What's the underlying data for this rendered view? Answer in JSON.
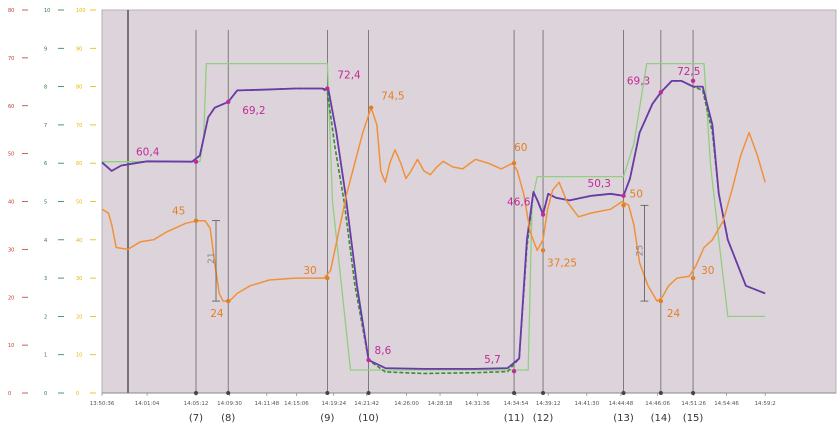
{
  "chart_data": {
    "type": "line",
    "x_unit": "seconds",
    "x_range": [
      0,
      1140
    ],
    "y_range": [
      0,
      100
    ],
    "colors": {
      "plot_bg": "#ddd4db",
      "green": "#3a8a3a",
      "setpoint": "#8fcf7f",
      "purple": "#6a3aa8",
      "orange": "#f0913a",
      "magenta_label": "#c02a9a",
      "orange_label": "#e27f23",
      "guide_line": "#555555"
    },
    "left_axes": [
      {
        "color": "#c0392b",
        "ticks": [
          "0",
          "10",
          "20",
          "30",
          "40",
          "50",
          "60",
          "70",
          "80"
        ]
      },
      {
        "color": "#2e7d32",
        "ticks": [
          "0",
          "1",
          "2",
          "3",
          "4",
          "5",
          "6",
          "7",
          "8",
          "9",
          "10"
        ]
      },
      {
        "color": "#e6b800",
        "ticks": [
          "0",
          "10",
          "20",
          "30",
          "40",
          "50",
          "60",
          "70",
          "80",
          "90",
          "100"
        ]
      }
    ],
    "x_ticks": [
      {
        "x": 0,
        "label": "13:50:36"
      },
      {
        "x": 70,
        "label": "14:01:04"
      },
      {
        "x": 146,
        "label": "14:05:12"
      },
      {
        "x": 198,
        "label": "14:09:30"
      },
      {
        "x": 256,
        "label": "14:11:48"
      },
      {
        "x": 302,
        "label": "14:15:06"
      },
      {
        "x": 360,
        "label": "14:19:24"
      },
      {
        "x": 411,
        "label": "14:21:42"
      },
      {
        "x": 473,
        "label": "14:26:00"
      },
      {
        "x": 525,
        "label": "14:28:18"
      },
      {
        "x": 583,
        "label": "14:31:36"
      },
      {
        "x": 643,
        "label": "14:34:54"
      },
      {
        "x": 693,
        "label": "14:39:12"
      },
      {
        "x": 753,
        "label": "14:41:30"
      },
      {
        "x": 806,
        "label": "14:44:48"
      },
      {
        "x": 863,
        "label": "14:46:06"
      },
      {
        "x": 919,
        "label": "14:51:26"
      },
      {
        "x": 970,
        "label": "14:54:46"
      },
      {
        "x": 1030,
        "label": "14:59:2"
      }
    ],
    "markers": [
      {
        "x": 146,
        "label": "(7)"
      },
      {
        "x": 196,
        "label": "(8)"
      },
      {
        "x": 350,
        "label": "(9)"
      },
      {
        "x": 414,
        "label": "(10)"
      },
      {
        "x": 640,
        "label": "(11)"
      },
      {
        "x": 685,
        "label": "(12)"
      },
      {
        "x": 810,
        "label": "(13)"
      },
      {
        "x": 868,
        "label": "(14)"
      },
      {
        "x": 918,
        "label": "(15)"
      }
    ],
    "series": [
      {
        "key": "setpoint",
        "dash": "none",
        "points": [
          [
            0,
            60.4
          ],
          [
            152,
            60.4
          ],
          [
            158,
            67
          ],
          [
            162,
            86
          ],
          [
            350,
            86
          ],
          [
            358,
            50
          ],
          [
            386,
            6
          ],
          [
            662,
            6
          ],
          [
            668,
            50
          ],
          [
            676,
            56.5
          ],
          [
            810,
            56.5
          ],
          [
            826,
            65
          ],
          [
            846,
            86
          ],
          [
            935,
            86
          ],
          [
            945,
            60
          ],
          [
            958,
            40
          ],
          [
            972,
            20
          ],
          [
            1030,
            20
          ]
        ]
      },
      {
        "key": "green",
        "dash": "4 2",
        "points": [
          [
            0,
            60.2
          ],
          [
            15,
            58
          ],
          [
            30,
            59.4
          ],
          [
            70,
            60.5
          ],
          [
            140,
            60.4
          ],
          [
            152,
            62
          ],
          [
            165,
            72
          ],
          [
            175,
            74.5
          ],
          [
            196,
            76
          ],
          [
            210,
            79
          ],
          [
            250,
            79.2
          ],
          [
            300,
            79.5
          ],
          [
            342,
            79.5
          ],
          [
            350,
            78.5
          ],
          [
            362,
            64
          ],
          [
            376,
            50
          ],
          [
            393,
            28
          ],
          [
            414,
            8.6
          ],
          [
            440,
            5.5
          ],
          [
            500,
            5.1
          ],
          [
            580,
            5.3
          ],
          [
            630,
            5.6
          ],
          [
            648,
            9
          ],
          [
            660,
            38
          ],
          [
            670,
            52.5
          ],
          [
            677,
            50
          ],
          [
            685,
            46.6
          ],
          [
            693,
            52
          ],
          [
            705,
            51
          ],
          [
            726,
            50.3
          ],
          [
            760,
            51.5
          ],
          [
            790,
            52
          ],
          [
            810,
            51.5
          ],
          [
            820,
            56
          ],
          [
            835,
            68
          ],
          [
            855,
            75.5
          ],
          [
            868,
            78.5
          ],
          [
            885,
            81.5
          ],
          [
            900,
            81.5
          ],
          [
            918,
            80
          ],
          [
            933,
            79
          ],
          [
            948,
            68
          ],
          [
            958,
            52
          ],
          [
            972,
            40
          ],
          [
            1000,
            28
          ],
          [
            1030,
            26
          ]
        ]
      },
      {
        "key": "purple",
        "dash": "none",
        "points": [
          [
            0,
            60.2
          ],
          [
            15,
            58
          ],
          [
            30,
            59.4
          ],
          [
            70,
            60.5
          ],
          [
            140,
            60.4
          ],
          [
            152,
            62
          ],
          [
            165,
            72
          ],
          [
            175,
            74.5
          ],
          [
            196,
            76
          ],
          [
            210,
            79
          ],
          [
            250,
            79.2
          ],
          [
            300,
            79.5
          ],
          [
            342,
            79.5
          ],
          [
            352,
            79
          ],
          [
            364,
            68
          ],
          [
            378,
            52
          ],
          [
            396,
            28
          ],
          [
            414,
            8.6
          ],
          [
            440,
            6.5
          ],
          [
            500,
            6.3
          ],
          [
            580,
            6.3
          ],
          [
            630,
            6.5
          ],
          [
            648,
            9
          ],
          [
            660,
            40
          ],
          [
            670,
            52.5
          ],
          [
            677,
            50
          ],
          [
            685,
            46.6
          ],
          [
            693,
            52
          ],
          [
            705,
            51
          ],
          [
            726,
            50.3
          ],
          [
            760,
            51.5
          ],
          [
            790,
            52
          ],
          [
            810,
            51.5
          ],
          [
            820,
            56
          ],
          [
            835,
            68
          ],
          [
            855,
            75.5
          ],
          [
            868,
            78.5
          ],
          [
            885,
            81.5
          ],
          [
            900,
            81.5
          ],
          [
            918,
            80
          ],
          [
            933,
            80
          ],
          [
            948,
            70
          ],
          [
            958,
            52
          ],
          [
            972,
            40
          ],
          [
            1000,
            28
          ],
          [
            1030,
            26
          ]
        ]
      },
      {
        "key": "orange",
        "dash": "none",
        "points": [
          [
            0,
            48
          ],
          [
            10,
            47
          ],
          [
            15,
            44
          ],
          [
            22,
            38
          ],
          [
            40,
            37.5
          ],
          [
            60,
            39.5
          ],
          [
            80,
            40
          ],
          [
            100,
            42
          ],
          [
            130,
            44.3
          ],
          [
            148,
            45
          ],
          [
            160,
            45
          ],
          [
            168,
            43
          ],
          [
            175,
            34
          ],
          [
            182,
            26
          ],
          [
            188,
            24
          ],
          [
            198,
            24
          ],
          [
            210,
            26
          ],
          [
            230,
            28
          ],
          [
            260,
            29.5
          ],
          [
            300,
            30
          ],
          [
            345,
            30
          ],
          [
            355,
            32
          ],
          [
            380,
            52
          ],
          [
            405,
            68
          ],
          [
            418,
            74.5
          ],
          [
            427,
            70
          ],
          [
            433,
            58
          ],
          [
            440,
            55
          ],
          [
            447,
            60
          ],
          [
            455,
            63.5
          ],
          [
            464,
            60
          ],
          [
            472,
            56
          ],
          [
            480,
            58
          ],
          [
            490,
            61
          ],
          [
            500,
            58
          ],
          [
            510,
            57
          ],
          [
            520,
            59
          ],
          [
            530,
            60.5
          ],
          [
            545,
            59
          ],
          [
            560,
            58.5
          ],
          [
            580,
            61
          ],
          [
            600,
            60
          ],
          [
            620,
            58.5
          ],
          [
            638,
            60
          ],
          [
            645,
            58
          ],
          [
            655,
            52
          ],
          [
            665,
            42
          ],
          [
            676,
            37.25
          ],
          [
            685,
            40
          ],
          [
            692,
            48
          ],
          [
            700,
            53
          ],
          [
            710,
            55
          ],
          [
            722,
            50
          ],
          [
            740,
            46
          ],
          [
            760,
            47
          ],
          [
            790,
            48
          ],
          [
            808,
            50
          ],
          [
            818,
            49
          ],
          [
            826,
            44
          ],
          [
            835,
            34
          ],
          [
            848,
            28
          ],
          [
            862,
            24
          ],
          [
            870,
            25
          ],
          [
            880,
            28
          ],
          [
            893,
            30
          ],
          [
            912,
            30.5
          ],
          [
            922,
            33
          ],
          [
            935,
            38
          ],
          [
            948,
            40
          ],
          [
            965,
            45
          ],
          [
            980,
            54
          ],
          [
            992,
            62
          ],
          [
            1005,
            68
          ],
          [
            1018,
            62
          ],
          [
            1030,
            55
          ]
        ]
      }
    ],
    "callouts": [
      {
        "text": "60,4",
        "x": 146,
        "y": 60.4,
        "color_key": "magenta_label",
        "dx": -60,
        "dy": -6
      },
      {
        "text": "69,2",
        "x": 196,
        "y": 76,
        "color_key": "magenta_label",
        "dx": 14,
        "dy": 12
      },
      {
        "text": "72,4",
        "x": 350,
        "y": 79.5,
        "color_key": "magenta_label",
        "dx": 10,
        "dy": -10
      },
      {
        "text": "8,6",
        "x": 414,
        "y": 8.6,
        "color_key": "magenta_label",
        "dx": 6,
        "dy": -6
      },
      {
        "text": "5,7",
        "x": 640,
        "y": 5.7,
        "color_key": "magenta_label",
        "dx": -30,
        "dy": -8
      },
      {
        "text": "46,6",
        "x": 685,
        "y": 46.6,
        "color_key": "magenta_label",
        "dx": -36,
        "dy": -9
      },
      {
        "text": "50,3",
        "x": 810,
        "y": 51.5,
        "color_key": "magenta_label",
        "dx": -36,
        "dy": -9
      },
      {
        "text": "69,3",
        "x": 868,
        "y": 78.5,
        "color_key": "magenta_label",
        "dx": -34,
        "dy": -8
      },
      {
        "text": "72,5",
        "x": 918,
        "y": 81.5,
        "color_key": "magenta_label",
        "dx": -16,
        "dy": -6
      },
      {
        "text": "45",
        "x": 146,
        "y": 45,
        "color_key": "orange_label",
        "dx": -24,
        "dy": -6
      },
      {
        "text": "24",
        "x": 196,
        "y": 24,
        "color_key": "orange_label",
        "dx": -18,
        "dy": 16
      },
      {
        "text": "30",
        "x": 350,
        "y": 30,
        "color_key": "orange_label",
        "dx": -24,
        "dy": -4
      },
      {
        "text": "74,5",
        "x": 418,
        "y": 74.5,
        "color_key": "orange_label",
        "dx": 10,
        "dy": -8
      },
      {
        "text": "60",
        "x": 640,
        "y": 60,
        "color_key": "orange_label",
        "dx": 0,
        "dy": -12
      },
      {
        "text": "37,25",
        "x": 685,
        "y": 37.25,
        "color_key": "orange_label",
        "dx": 4,
        "dy": 16
      },
      {
        "text": "50",
        "x": 810,
        "y": 49,
        "color_key": "orange_label",
        "dx": 6,
        "dy": -8
      },
      {
        "text": "24",
        "x": 868,
        "y": 24,
        "color_key": "orange_label",
        "dx": 6,
        "dy": 16
      },
      {
        "text": "30",
        "x": 918,
        "y": 30,
        "color_key": "orange_label",
        "dx": 8,
        "dy": -4
      }
    ],
    "brackets": [
      {
        "x_offset": 20,
        "x_ref": 146,
        "y_top": 45,
        "y_bottom": 24,
        "label": "21"
      },
      {
        "x_offset": -10,
        "x_ref": 858,
        "y_top": 49,
        "y_bottom": 24,
        "label": "25"
      }
    ]
  }
}
